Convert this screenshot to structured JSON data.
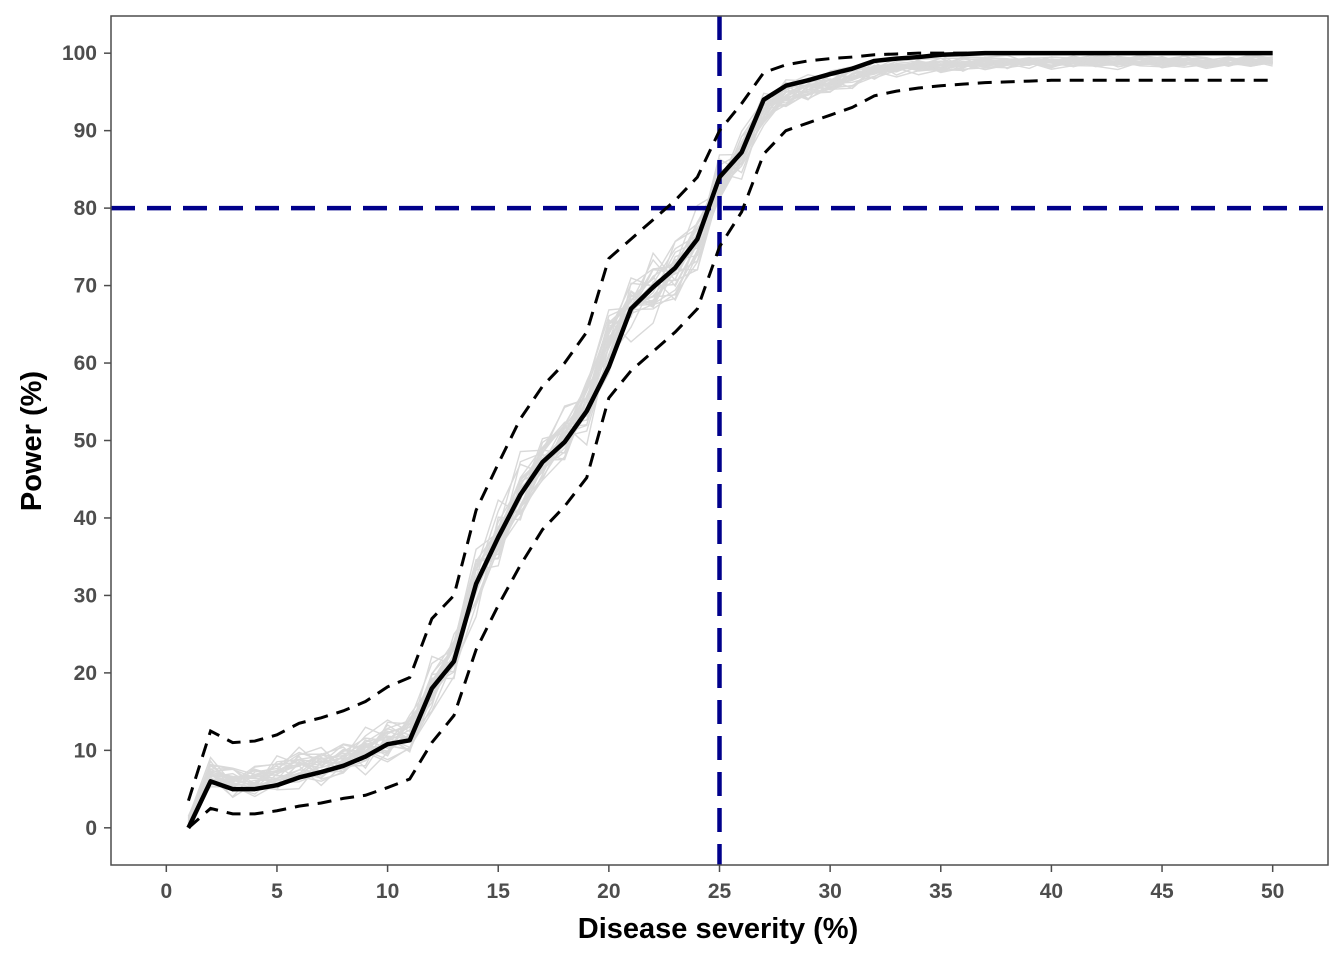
{
  "chart_data": {
    "type": "line",
    "title": "",
    "xlabel": "Disease severity (%)",
    "ylabel": "Power (%)",
    "xlim": [
      -2.5,
      52.5
    ],
    "ylim": [
      -4.8,
      104.8
    ],
    "xticks": [
      0,
      5,
      10,
      15,
      20,
      25,
      30,
      35,
      40,
      45,
      50
    ],
    "yticks": [
      0,
      10,
      20,
      30,
      40,
      50,
      60,
      70,
      80,
      90,
      100
    ],
    "grid": false,
    "legend": "none",
    "colors": {
      "mean": "#000000",
      "bounds": "#000000",
      "reference": "#00008B",
      "simulations": "#d9d9d9",
      "frame": "#4d4d4d",
      "tick_text": "#4d4d4d"
    },
    "reference_lines": {
      "x": 25,
      "y": 80
    },
    "x": [
      1,
      2,
      3,
      4,
      5,
      6,
      7,
      8,
      9,
      10,
      11,
      12,
      13,
      14,
      15,
      16,
      17,
      18,
      19,
      20,
      21,
      22,
      23,
      24,
      25,
      26,
      27,
      28,
      29,
      30,
      31,
      32,
      33,
      34,
      35,
      36,
      37,
      38,
      39,
      40,
      41,
      42,
      43,
      44,
      45,
      46,
      47,
      48,
      49,
      50
    ],
    "series": [
      {
        "role": "mean",
        "values": [
          0,
          6,
          5,
          5,
          5.5,
          6.5,
          7.2,
          8,
          9.2,
          10.8,
          11.3,
          18,
          21.5,
          31.5,
          37.5,
          43,
          47.2,
          49.8,
          53.8,
          59.5,
          67,
          69.8,
          72.3,
          76,
          84,
          87.2,
          94,
          95.8,
          96.5,
          97.3,
          98,
          99,
          99.3,
          99.5,
          99.8,
          99.9,
          100,
          100,
          100,
          100,
          100,
          100,
          100,
          100,
          100,
          100,
          100,
          100,
          100,
          100
        ]
      },
      {
        "role": "upper",
        "values": [
          3.5,
          12.5,
          11,
          11.2,
          12,
          13.5,
          14.2,
          15.1,
          16.3,
          18.2,
          19.4,
          27,
          30,
          41,
          47,
          52.8,
          57,
          60,
          64,
          73.5,
          76,
          78.5,
          81,
          84,
          90,
          93.5,
          97.5,
          98.5,
          99,
          99.3,
          99.5,
          99.8,
          99.9,
          100,
          100,
          100,
          100,
          100,
          100,
          100,
          100,
          100,
          100,
          100,
          100,
          100,
          100,
          100,
          100,
          100
        ]
      },
      {
        "role": "lower",
        "values": [
          0,
          2.5,
          1.8,
          1.8,
          2.2,
          2.8,
          3.2,
          3.8,
          4.2,
          5.2,
          6.3,
          11,
          14.5,
          23,
          28.7,
          33.9,
          38.5,
          41.5,
          45.2,
          55.5,
          59,
          61.5,
          64,
          67,
          75,
          79.5,
          87,
          90,
          91,
          92,
          93,
          94.5,
          95.1,
          95.5,
          95.8,
          96,
          96.2,
          96.3,
          96.4,
          96.5,
          96.5,
          96.5,
          96.5,
          96.5,
          96.5,
          96.5,
          96.5,
          96.5,
          96.5,
          96.5
        ]
      }
    ],
    "simulated_band": {
      "count": 28
    }
  }
}
